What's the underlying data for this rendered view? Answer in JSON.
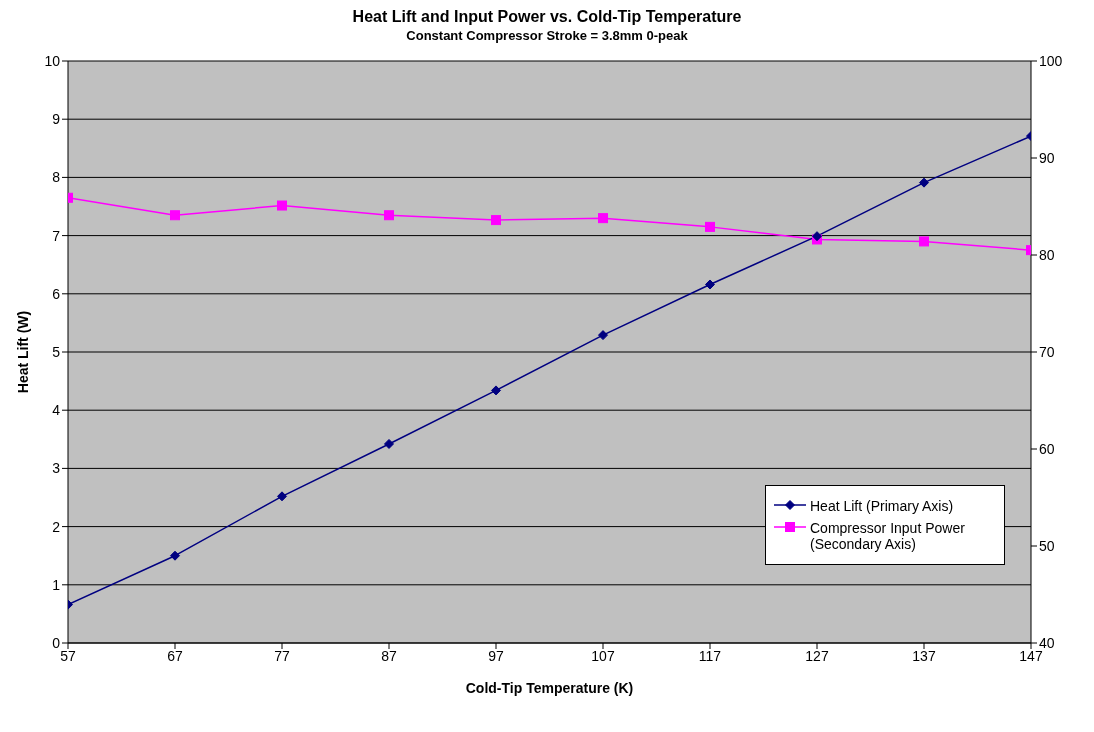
{
  "chart_data": {
    "type": "line",
    "title": "Heat Lift and Input Power vs. Cold-Tip Temperature",
    "subtitle": "Constant Compressor Stroke = 3.8mm 0-peak",
    "xlabel": "Cold-Tip Temperature (K)",
    "ylabel": "Heat Lift (W)",
    "x": [
      57,
      67,
      77,
      87,
      97,
      107,
      117,
      127,
      137,
      147
    ],
    "xlim": [
      57,
      147
    ],
    "xticks": [
      57,
      67,
      77,
      87,
      97,
      107,
      117,
      127,
      137,
      147
    ],
    "ylim": [
      0,
      10
    ],
    "yticks": [
      0,
      1,
      2,
      3,
      4,
      5,
      6,
      7,
      8,
      9,
      10
    ],
    "y2lim": [
      40,
      100
    ],
    "y2ticks": [
      40,
      50,
      60,
      70,
      80,
      90,
      100
    ],
    "series": [
      {
        "name": "Heat Lift (Primary Axis)",
        "color": "#000080",
        "marker": "diamond",
        "values": [
          0.66,
          1.5,
          2.52,
          3.42,
          4.34,
          5.29,
          6.16,
          6.99,
          7.91,
          8.71
        ]
      },
      {
        "name": "Compressor Input Power (Secondary Axis)",
        "color": "#ff00ff",
        "marker": "square",
        "axis": "y2",
        "values": [
          85.9,
          84.1,
          85.1,
          84.1,
          83.6,
          83.8,
          82.9,
          81.6,
          81.4,
          80.5
        ]
      }
    ],
    "grid": "y",
    "legend": "bottom right",
    "line_style": "solid"
  }
}
